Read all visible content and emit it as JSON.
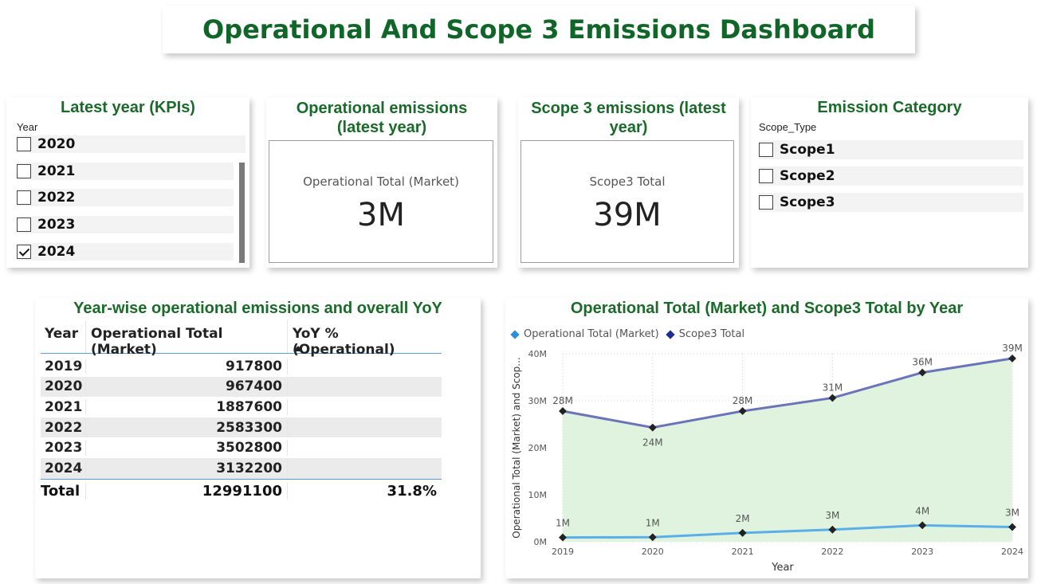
{
  "header": {
    "title": "Operational And Scope 3 Emissions Dashboard"
  },
  "year_slicer": {
    "title": "Latest year (KPIs)",
    "field": "Year",
    "items": [
      {
        "label": "2020",
        "checked": false
      },
      {
        "label": "2021",
        "checked": false
      },
      {
        "label": "2022",
        "checked": false
      },
      {
        "label": "2023",
        "checked": false
      },
      {
        "label": "2024",
        "checked": true
      }
    ]
  },
  "kpi_operational": {
    "title_line1": "Operational emissions",
    "title_line2": "(latest year)",
    "label": "Operational Total (Market)",
    "value": "3M"
  },
  "kpi_scope3": {
    "title_line1": "Scope 3 emissions (latest",
    "title_line2": "year)",
    "label": "Scope3 Total",
    "value": "39M"
  },
  "category_slicer": {
    "title": "Emission Category",
    "field": "Scope_Type",
    "items": [
      {
        "label": "Scope1",
        "checked": false
      },
      {
        "label": "Scope2",
        "checked": false
      },
      {
        "label": "Scope3",
        "checked": false
      }
    ]
  },
  "table": {
    "title": "Year-wise operational emissions and overall YoY",
    "columns": [
      "Year",
      "Operational Total (Market)",
      "YoY % (Operational)"
    ],
    "rows": [
      {
        "year": "2019",
        "op": "917800",
        "yoy": ""
      },
      {
        "year": "2020",
        "op": "967400",
        "yoy": ""
      },
      {
        "year": "2021",
        "op": "1887600",
        "yoy": ""
      },
      {
        "year": "2022",
        "op": "2583300",
        "yoy": ""
      },
      {
        "year": "2023",
        "op": "3502800",
        "yoy": ""
      },
      {
        "year": "2024",
        "op": "3132200",
        "yoy": ""
      }
    ],
    "total": {
      "label": "Total",
      "op": "12991100",
      "yoy": "31.8%"
    }
  },
  "chart_data": {
    "type": "line",
    "title": "Operational Total (Market) and Scope3 Total by Year",
    "xlabel": "Year",
    "ylabel": "Operational Total (Market) and Scop...",
    "x": [
      2019,
      2020,
      2021,
      2022,
      2023,
      2024
    ],
    "ylim": [
      0,
      40000000
    ],
    "yticks": [
      "0M",
      "10M",
      "20M",
      "30M",
      "40M"
    ],
    "grid": true,
    "legend_position": "top-left",
    "series": [
      {
        "name": "Operational Total (Market)",
        "values": [
          917800,
          967400,
          1887600,
          2583300,
          3502800,
          3132200
        ],
        "labels": [
          "1M",
          "1M",
          "2M",
          "3M",
          "4M",
          "3M"
        ],
        "color": "#5aafe8",
        "marker_color": "#2b8fd9"
      },
      {
        "name": "Scope3 Total",
        "values": [
          27800000,
          24300000,
          27800000,
          30600000,
          36000000,
          39000000
        ],
        "labels": [
          "28M",
          "24M",
          "28M",
          "31M",
          "36M",
          "39M"
        ],
        "color": "#6b74b8",
        "marker_color": "#1f2d8c"
      }
    ],
    "area_fill": "#dff3df"
  }
}
